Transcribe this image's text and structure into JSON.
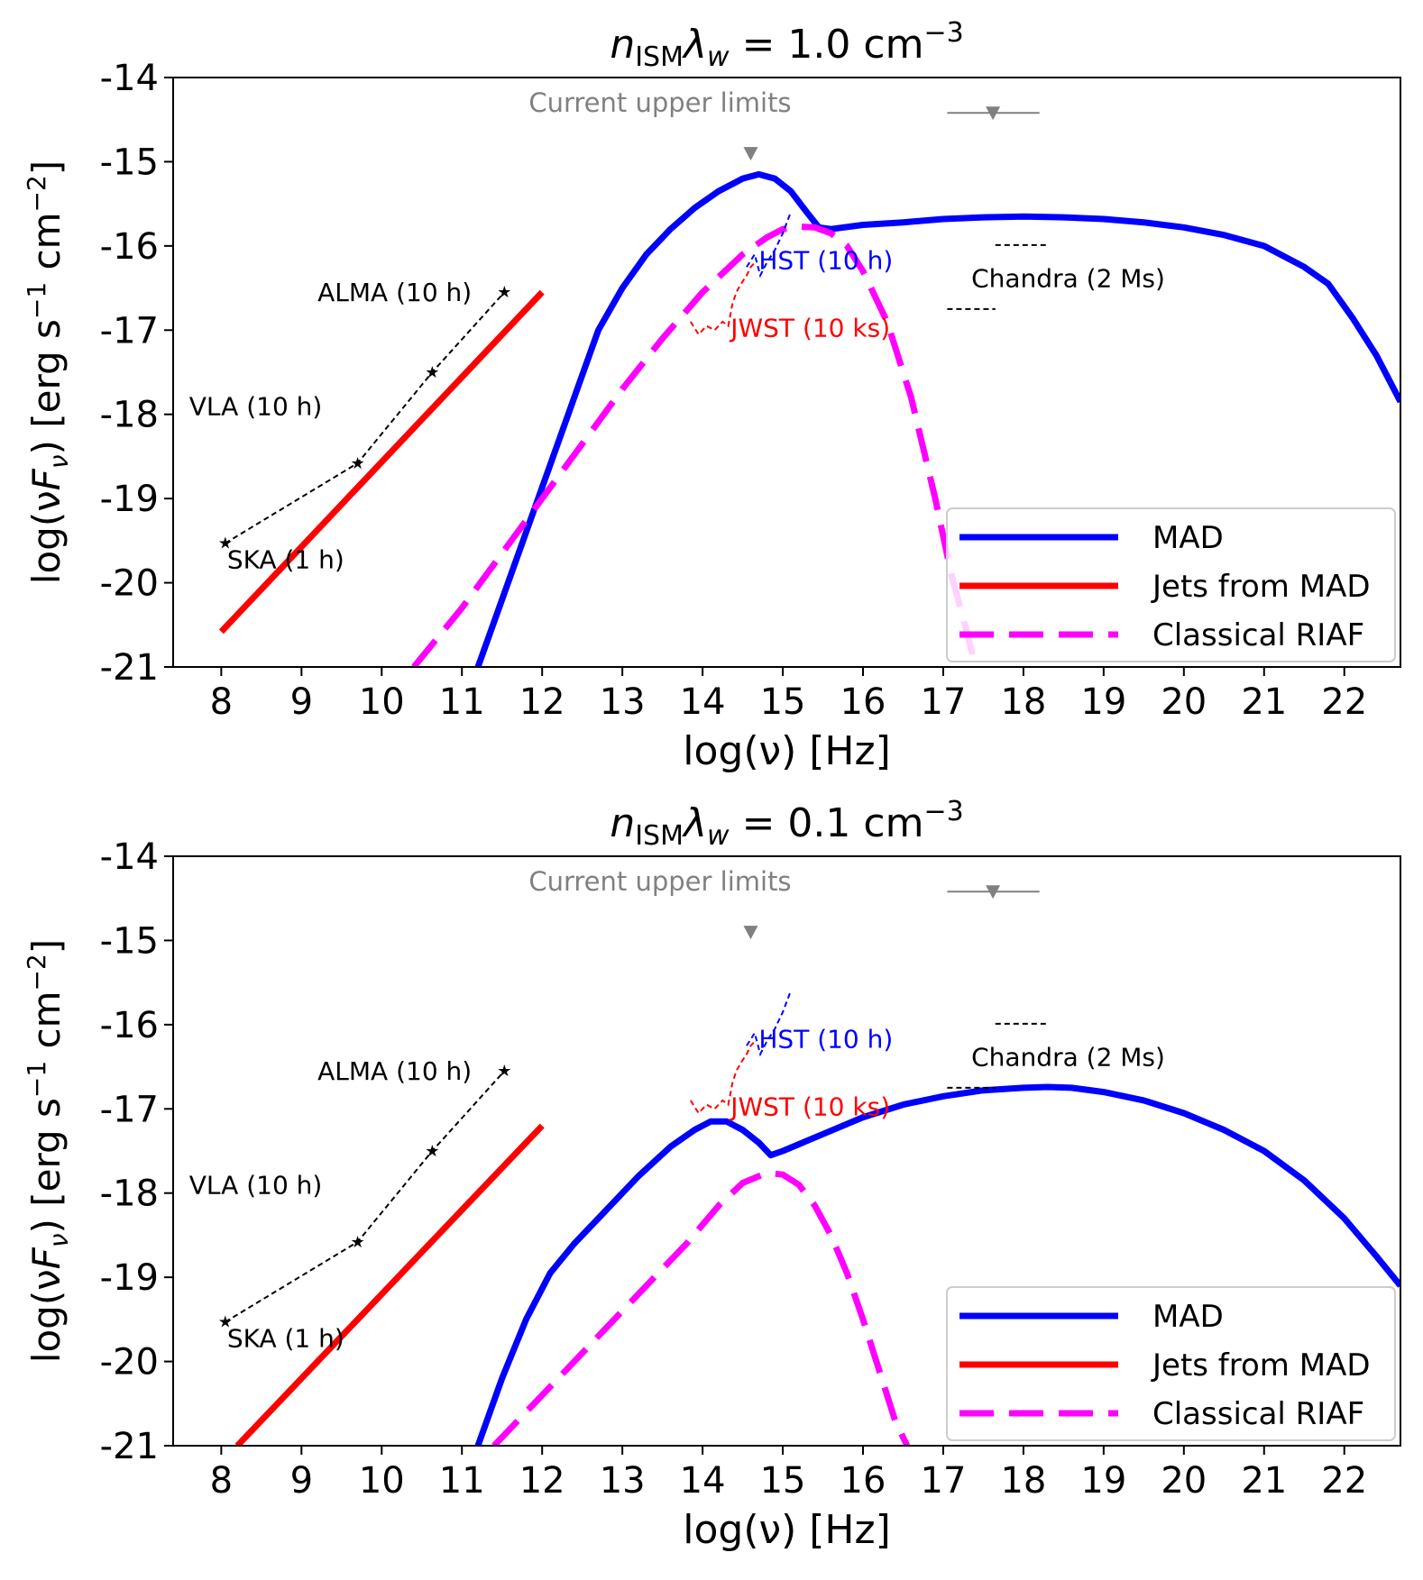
{
  "chart_data": [
    {
      "type": "line",
      "title": "n_ISM λ_w = 1.0 cm⁻³",
      "title_parts": {
        "n": "n",
        "sub": "ISM",
        "lambda": "λ",
        "w": "w",
        "eq": " = 1.0 cm",
        "exp": "−3"
      },
      "xlabel": "log(ν) [Hz]",
      "ylabel": "log(νF_ν) [erg s⁻¹ cm⁻²]",
      "ylabel_parts": {
        "a": "log(ν",
        "F": "F",
        "nu": "ν",
        "b": ") [erg s",
        "e1": "−1",
        "c": " cm",
        "e2": "−2",
        "d": "]"
      },
      "xlim": [
        7.4,
        22.7
      ],
      "ylim": [
        -21,
        -14
      ],
      "xticks": [
        8,
        9,
        10,
        11,
        12,
        13,
        14,
        15,
        16,
        17,
        18,
        19,
        20,
        21,
        22
      ],
      "yticks": [
        -14,
        -15,
        -16,
        -17,
        -18,
        -19,
        -20,
        -21
      ],
      "ytick_labels": [
        "-14",
        "-15",
        "-16",
        "-17",
        "-18",
        "-19",
        "-20",
        "-21"
      ],
      "legend": {
        "location": "lower-right",
        "entries": [
          "MAD",
          "Jets from MAD",
          "Classical RIAF"
        ]
      },
      "series": [
        {
          "name": "MAD",
          "color": "#0000ff",
          "style": "solid",
          "x": [
            11.2,
            11.5,
            11.8,
            12.1,
            12.4,
            12.7,
            13.0,
            13.3,
            13.6,
            13.9,
            14.2,
            14.5,
            14.7,
            14.9,
            15.1,
            15.3,
            15.45,
            15.6,
            16.0,
            16.5,
            17.0,
            17.5,
            18.0,
            18.5,
            19.0,
            19.5,
            20.0,
            20.5,
            21.0,
            21.5,
            21.8,
            22.1,
            22.4,
            22.7
          ],
          "y": [
            -21.0,
            -20.2,
            -19.4,
            -18.6,
            -17.8,
            -17.0,
            -16.5,
            -16.1,
            -15.8,
            -15.55,
            -15.35,
            -15.2,
            -15.15,
            -15.2,
            -15.35,
            -15.6,
            -15.78,
            -15.8,
            -15.75,
            -15.72,
            -15.68,
            -15.66,
            -15.65,
            -15.66,
            -15.68,
            -15.72,
            -15.78,
            -15.87,
            -16.0,
            -16.25,
            -16.45,
            -16.85,
            -17.3,
            -17.85
          ]
        },
        {
          "name": "Jets from MAD",
          "color": "#ff0000",
          "style": "solid",
          "x": [
            8.0,
            12.0
          ],
          "y": [
            -20.58,
            -16.55
          ]
        },
        {
          "name": "Classical RIAF",
          "color": "#ff00ff",
          "style": "dashed",
          "x": [
            10.4,
            11.0,
            11.5,
            12.0,
            12.5,
            13.0,
            13.5,
            14.0,
            14.5,
            14.8,
            15.0,
            15.2,
            15.4,
            15.6,
            15.8,
            16.0,
            16.3,
            16.6,
            16.9,
            17.1,
            17.3,
            17.4
          ],
          "y": [
            -21.0,
            -20.3,
            -19.65,
            -19.0,
            -18.35,
            -17.7,
            -17.1,
            -16.55,
            -16.1,
            -15.9,
            -15.8,
            -15.77,
            -15.78,
            -15.85,
            -16.0,
            -16.3,
            -16.9,
            -17.8,
            -19.0,
            -19.9,
            -20.6,
            -21.0
          ]
        }
      ],
      "instruments": [
        {
          "name": "SKA",
          "label": "SKA (1 h)",
          "x": 8.05,
          "y": -19.53
        },
        {
          "name": "VLA",
          "label": "VLA (10 h)",
          "x": 9.7,
          "y": -18.58
        },
        {
          "name": "ALMA-a",
          "label": "",
          "x": 10.63,
          "y": -17.5
        },
        {
          "name": "ALMA",
          "label": "ALMA (10 h)",
          "x": 11.53,
          "y": -16.55
        }
      ],
      "sensitivity_curves": [
        {
          "name": "HST",
          "label": "HST (10 h)",
          "color": "#0000ff",
          "x": [
            14.55,
            14.65,
            14.72,
            14.8,
            14.9,
            15.0,
            15.1
          ],
          "y": [
            -16.25,
            -16.1,
            -16.35,
            -16.2,
            -16.05,
            -15.85,
            -15.6
          ]
        },
        {
          "name": "JWST",
          "label": "JWST (10 ks)",
          "color": "#ff0000",
          "x": [
            13.85,
            13.95,
            14.05,
            14.15,
            14.25,
            14.32,
            14.37,
            14.42,
            14.48,
            14.55,
            14.6,
            14.65
          ],
          "y": [
            -16.9,
            -17.05,
            -16.95,
            -17.0,
            -16.9,
            -16.95,
            -16.7,
            -16.55,
            -16.45,
            -16.35,
            -16.25,
            -16.2
          ]
        },
        {
          "name": "Chandra",
          "label": "Chandra (2 Ms)",
          "color": "#000000",
          "segments": [
            {
              "x": [
                17.65,
                18.3
              ],
              "y": [
                -15.99,
                -15.99
              ]
            },
            {
              "x": [
                17.05,
                17.65
              ],
              "y": [
                -16.75,
                -16.75
              ]
            }
          ]
        }
      ],
      "upper_limits": {
        "label": "Current upper limits",
        "points": [
          {
            "x": 14.6,
            "y": -14.9
          },
          {
            "x": 17.62,
            "y": -14.42,
            "xerr": [
              17.05,
              18.2
            ]
          }
        ]
      }
    },
    {
      "type": "line",
      "title": "n_ISM λ_w = 0.1 cm⁻³",
      "title_parts": {
        "n": "n",
        "sub": "ISM",
        "lambda": "λ",
        "w": "w",
        "eq": " = 0.1 cm",
        "exp": "−3"
      },
      "xlabel": "log(ν) [Hz]",
      "ylabel": "log(νF_ν) [erg s⁻¹ cm⁻²]",
      "ylabel_parts": {
        "a": "log(ν",
        "F": "F",
        "nu": "ν",
        "b": ") [erg s",
        "e1": "−1",
        "c": " cm",
        "e2": "−2",
        "d": "]"
      },
      "xlim": [
        7.4,
        22.7
      ],
      "ylim": [
        -21,
        -14
      ],
      "xticks": [
        8,
        9,
        10,
        11,
        12,
        13,
        14,
        15,
        16,
        17,
        18,
        19,
        20,
        21,
        22
      ],
      "yticks": [
        -14,
        -15,
        -16,
        -17,
        -18,
        -19,
        -20,
        -21
      ],
      "ytick_labels": [
        "-14",
        "-15",
        "-16",
        "-17",
        "-18",
        "-19",
        "-20",
        "-21"
      ],
      "legend": {
        "location": "lower-right",
        "entries": [
          "MAD",
          "Jets from MAD",
          "Classical RIAF"
        ]
      },
      "series": [
        {
          "name": "MAD",
          "color": "#0000ff",
          "style": "solid",
          "x": [
            11.2,
            11.5,
            11.8,
            12.1,
            12.4,
            12.8,
            13.2,
            13.6,
            13.9,
            14.1,
            14.3,
            14.5,
            14.7,
            14.85,
            15.0,
            15.5,
            16.0,
            16.5,
            17.0,
            17.5,
            18.0,
            18.3,
            18.6,
            19.0,
            19.5,
            20.0,
            20.5,
            21.0,
            21.5,
            22.0,
            22.4,
            22.7
          ],
          "y": [
            -21.0,
            -20.2,
            -19.5,
            -18.95,
            -18.6,
            -18.2,
            -17.8,
            -17.45,
            -17.25,
            -17.15,
            -17.15,
            -17.25,
            -17.4,
            -17.55,
            -17.5,
            -17.3,
            -17.1,
            -16.95,
            -16.85,
            -16.78,
            -16.75,
            -16.74,
            -16.75,
            -16.8,
            -16.9,
            -17.05,
            -17.25,
            -17.5,
            -17.85,
            -18.3,
            -18.75,
            -19.1
          ]
        },
        {
          "name": "Jets from MAD",
          "color": "#ff0000",
          "style": "solid",
          "x": [
            8.2,
            12.0
          ],
          "y": [
            -21.0,
            -17.2
          ]
        },
        {
          "name": "Classical RIAF",
          "color": "#ff00ff",
          "style": "dashed",
          "x": [
            11.4,
            11.8,
            12.2,
            12.6,
            13.0,
            13.4,
            13.8,
            14.2,
            14.5,
            14.8,
            15.0,
            15.2,
            15.4,
            15.6,
            15.8,
            16.0,
            16.2,
            16.4,
            16.55
          ],
          "y": [
            -21.0,
            -20.6,
            -20.2,
            -19.8,
            -19.4,
            -19.0,
            -18.6,
            -18.15,
            -17.88,
            -17.76,
            -17.78,
            -17.9,
            -18.15,
            -18.5,
            -18.95,
            -19.5,
            -20.1,
            -20.7,
            -21.0
          ]
        }
      ],
      "instruments": [
        {
          "name": "SKA",
          "label": "SKA (1 h)",
          "x": 8.05,
          "y": -19.53
        },
        {
          "name": "VLA",
          "label": "VLA (10 h)",
          "x": 9.7,
          "y": -18.58
        },
        {
          "name": "ALMA-a",
          "label": "",
          "x": 10.63,
          "y": -17.5
        },
        {
          "name": "ALMA",
          "label": "ALMA (10 h)",
          "x": 11.53,
          "y": -16.55
        }
      ],
      "sensitivity_curves": [
        {
          "name": "HST",
          "label": "HST (10 h)",
          "color": "#0000ff",
          "x": [
            14.55,
            14.65,
            14.72,
            14.8,
            14.9,
            15.0,
            15.1
          ],
          "y": [
            -16.25,
            -16.1,
            -16.35,
            -16.2,
            -16.05,
            -15.85,
            -15.6
          ]
        },
        {
          "name": "JWST",
          "label": "JWST (10 ks)",
          "color": "#ff0000",
          "x": [
            13.85,
            13.95,
            14.05,
            14.15,
            14.25,
            14.32,
            14.37,
            14.42,
            14.48,
            14.55,
            14.6,
            14.65
          ],
          "y": [
            -16.9,
            -17.05,
            -16.95,
            -17.0,
            -16.9,
            -16.95,
            -16.7,
            -16.55,
            -16.45,
            -16.35,
            -16.25,
            -16.2
          ]
        },
        {
          "name": "Chandra",
          "label": "Chandra (2 Ms)",
          "color": "#000000",
          "segments": [
            {
              "x": [
                17.65,
                18.3
              ],
              "y": [
                -15.99,
                -15.99
              ]
            },
            {
              "x": [
                17.05,
                17.65
              ],
              "y": [
                -16.75,
                -16.75
              ]
            }
          ]
        }
      ],
      "upper_limits": {
        "label": "Current upper limits",
        "points": [
          {
            "x": 14.6,
            "y": -14.9
          },
          {
            "x": 17.62,
            "y": -14.42,
            "xerr": [
              17.05,
              18.2
            ]
          }
        ]
      }
    }
  ]
}
